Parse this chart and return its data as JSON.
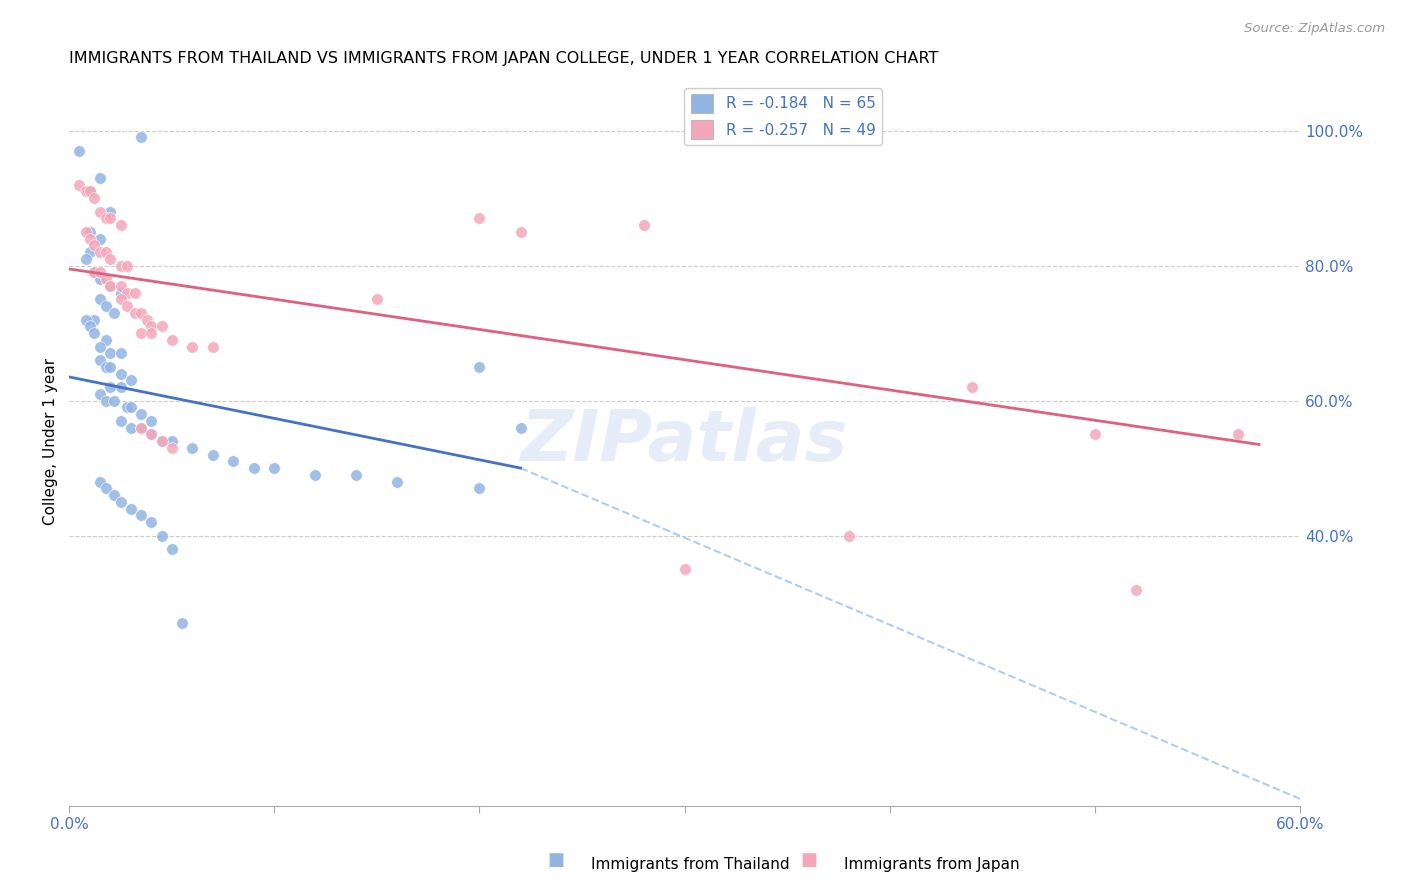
{
  "title": "IMMIGRANTS FROM THAILAND VS IMMIGRANTS FROM JAPAN COLLEGE, UNDER 1 YEAR CORRELATION CHART",
  "source": "Source: ZipAtlas.com",
  "ylabel": "College, Under 1 year",
  "xlabel": "",
  "xlim": [
    0.0,
    0.6
  ],
  "ylim": [
    0.0,
    1.08
  ],
  "x_ticks": [
    0.0,
    0.1,
    0.2,
    0.3,
    0.4,
    0.5,
    0.6
  ],
  "x_tick_labels": [
    "0.0%",
    "",
    "",
    "",
    "",
    "",
    "60.0%"
  ],
  "y_ticks_right": [
    0.4,
    0.6,
    0.8,
    1.0
  ],
  "y_tick_labels_right": [
    "40.0%",
    "60.0%",
    "80.0%",
    "100.0%"
  ],
  "legend_r1": "R = -0.184   N = 65",
  "legend_r2": "R = -0.257   N = 49",
  "color_thailand": "#92b4e3",
  "color_japan": "#f4a7b9",
  "line_color_thailand": "#4472c4",
  "line_color_japan": "#e06080",
  "watermark": "ZIPatlas",
  "thailand_scatter_x": [
    0.035,
    0.005,
    0.015,
    0.01,
    0.02,
    0.01,
    0.015,
    0.01,
    0.008,
    0.012,
    0.015,
    0.02,
    0.025,
    0.015,
    0.018,
    0.022,
    0.012,
    0.008,
    0.01,
    0.012,
    0.018,
    0.015,
    0.02,
    0.025,
    0.015,
    0.018,
    0.02,
    0.025,
    0.03,
    0.025,
    0.02,
    0.015,
    0.018,
    0.022,
    0.028,
    0.03,
    0.035,
    0.04,
    0.025,
    0.03,
    0.035,
    0.04,
    0.045,
    0.05,
    0.06,
    0.07,
    0.08,
    0.09,
    0.1,
    0.12,
    0.14,
    0.16,
    0.2,
    0.22,
    0.015,
    0.018,
    0.022,
    0.025,
    0.03,
    0.035,
    0.04,
    0.045,
    0.05,
    0.055,
    0.2
  ],
  "thailand_scatter_y": [
    0.99,
    0.97,
    0.93,
    0.91,
    0.88,
    0.85,
    0.84,
    0.82,
    0.81,
    0.79,
    0.78,
    0.77,
    0.76,
    0.75,
    0.74,
    0.73,
    0.72,
    0.72,
    0.71,
    0.7,
    0.69,
    0.68,
    0.67,
    0.67,
    0.66,
    0.65,
    0.65,
    0.64,
    0.63,
    0.62,
    0.62,
    0.61,
    0.6,
    0.6,
    0.59,
    0.59,
    0.58,
    0.57,
    0.57,
    0.56,
    0.56,
    0.55,
    0.54,
    0.54,
    0.53,
    0.52,
    0.51,
    0.5,
    0.5,
    0.49,
    0.49,
    0.48,
    0.47,
    0.56,
    0.48,
    0.47,
    0.46,
    0.45,
    0.44,
    0.43,
    0.42,
    0.4,
    0.38,
    0.27,
    0.65
  ],
  "japan_scatter_x": [
    0.005,
    0.008,
    0.01,
    0.012,
    0.015,
    0.018,
    0.02,
    0.025,
    0.008,
    0.01,
    0.012,
    0.015,
    0.018,
    0.02,
    0.025,
    0.028,
    0.012,
    0.015,
    0.018,
    0.02,
    0.025,
    0.028,
    0.032,
    0.025,
    0.028,
    0.032,
    0.035,
    0.038,
    0.04,
    0.045,
    0.035,
    0.04,
    0.05,
    0.06,
    0.07,
    0.035,
    0.04,
    0.045,
    0.05,
    0.15,
    0.2,
    0.22,
    0.28,
    0.5,
    0.44,
    0.38,
    0.3,
    0.52,
    0.57
  ],
  "japan_scatter_y": [
    0.92,
    0.91,
    0.91,
    0.9,
    0.88,
    0.87,
    0.87,
    0.86,
    0.85,
    0.84,
    0.83,
    0.82,
    0.82,
    0.81,
    0.8,
    0.8,
    0.79,
    0.79,
    0.78,
    0.77,
    0.77,
    0.76,
    0.76,
    0.75,
    0.74,
    0.73,
    0.73,
    0.72,
    0.71,
    0.71,
    0.7,
    0.7,
    0.69,
    0.68,
    0.68,
    0.56,
    0.55,
    0.54,
    0.53,
    0.75,
    0.87,
    0.85,
    0.86,
    0.55,
    0.62,
    0.4,
    0.35,
    0.32,
    0.55
  ],
  "thailand_line_x": [
    0.0,
    0.22
  ],
  "thailand_line_y": [
    0.635,
    0.5
  ],
  "japan_line_x": [
    0.0,
    0.58
  ],
  "japan_line_y": [
    0.795,
    0.535
  ],
  "dashed_line_x": [
    0.22,
    0.6
  ],
  "dashed_line_y": [
    0.5,
    0.01
  ]
}
